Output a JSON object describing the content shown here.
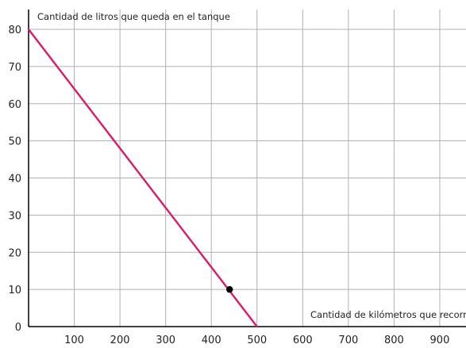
{
  "chart_data": {
    "type": "line",
    "ylabel": "Cantidad de litros que queda en el tanque",
    "xlabel": "Cantidad de kilómetros que recorre",
    "xlim": [
      0,
      930
    ],
    "ylim": [
      0,
      84
    ],
    "grid": true,
    "x_ticks": [
      100,
      200,
      300,
      400,
      500,
      600,
      700,
      800,
      900
    ],
    "y_ticks": [
      0,
      10,
      20,
      30,
      40,
      50,
      60,
      70,
      80
    ],
    "series": [
      {
        "x": [
          0,
          500
        ],
        "y": [
          80,
          0
        ]
      }
    ],
    "points": [
      {
        "x": 440,
        "y": 10
      }
    ],
    "colors": {
      "line": "#d81b6b",
      "point": "#000000",
      "grid": "#b0b0b0",
      "axis": "#000000"
    }
  }
}
